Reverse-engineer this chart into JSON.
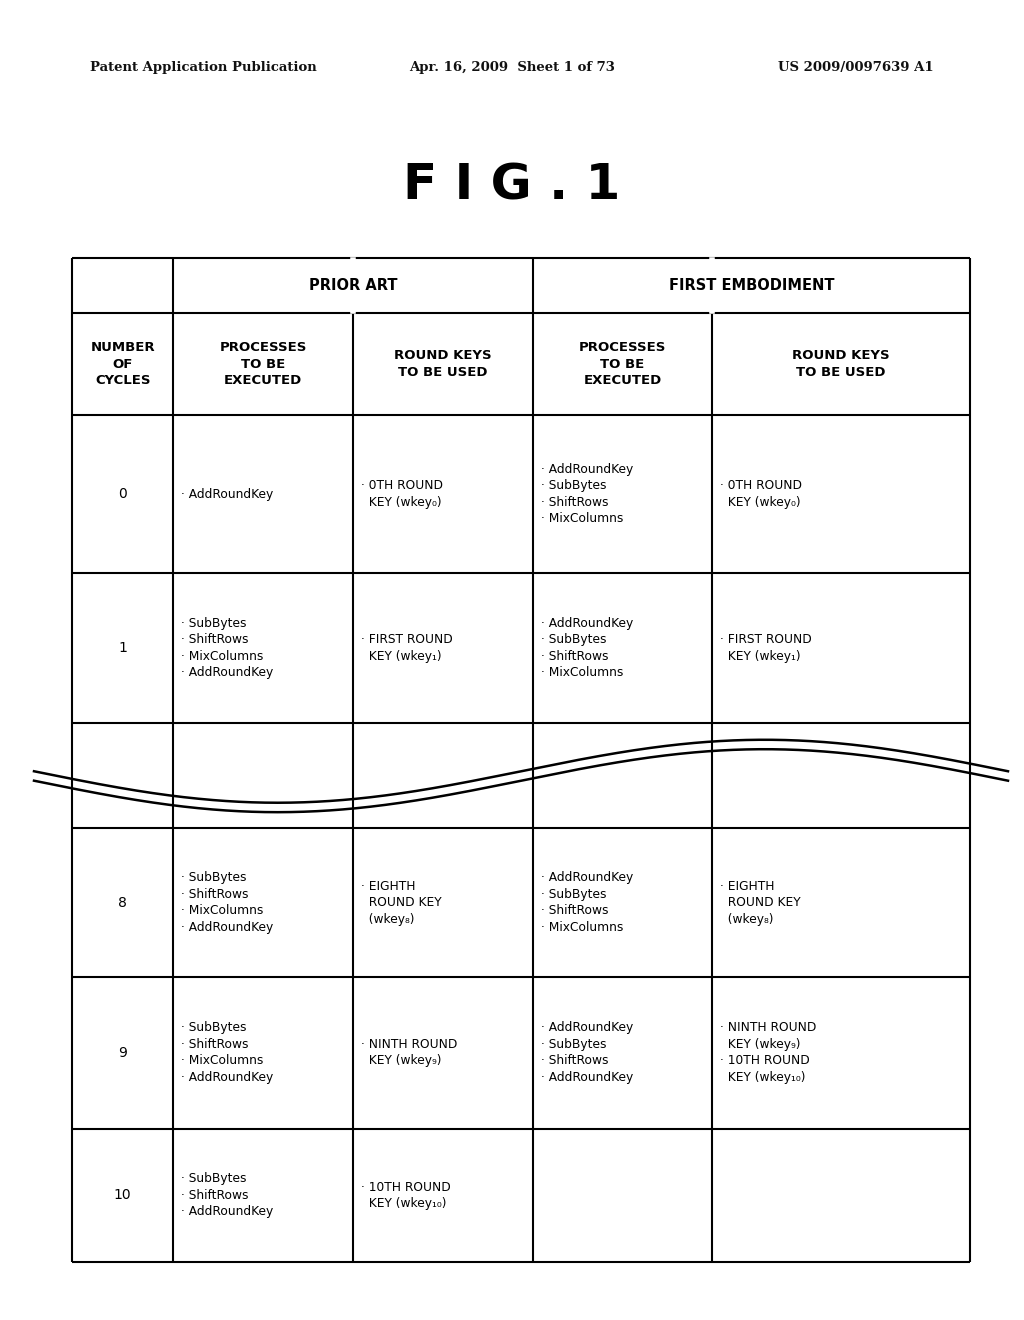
{
  "header_text_left": "Patent Application Publication",
  "header_text_mid": "Apr. 16, 2009  Sheet 1 of 73",
  "header_text_right": "US 2009/0097639 A1",
  "fig_title": "F I G . 1",
  "bg_color": "#ffffff",
  "cycles": [
    "0",
    "1",
    "",
    "8",
    "9",
    "10"
  ],
  "prior_art_processes": [
    "· AddRoundKey",
    "· SubBytes\n· ShiftRows\n· MixColumns\n· AddRoundKey",
    "",
    "· SubBytes\n· ShiftRows\n· MixColumns\n· AddRoundKey",
    "· SubBytes\n· ShiftRows\n· MixColumns\n· AddRoundKey",
    "· SubBytes\n· ShiftRows\n· AddRoundKey"
  ],
  "prior_art_keys": [
    "· 0TH ROUND\n  KEY (wkey₀)",
    "· FIRST ROUND\n  KEY (wkey₁)",
    "",
    "· EIGHTH\n  ROUND KEY\n  (wkey₈)",
    "· NINTH ROUND\n  KEY (wkey₉)",
    "· 10TH ROUND\n  KEY (wkey₁₀)"
  ],
  "first_emb_processes": [
    "· AddRoundKey\n· SubBytes\n· ShiftRows\n· MixColumns",
    "· AddRoundKey\n· SubBytes\n· ShiftRows\n· MixColumns",
    "",
    "· AddRoundKey\n· SubBytes\n· ShiftRows\n· MixColumns",
    "· AddRoundKey\n· SubBytes\n· ShiftRows\n· AddRoundKey",
    ""
  ],
  "first_emb_keys": [
    "· 0TH ROUND\n  KEY (wkey₀)",
    "· FIRST ROUND\n  KEY (wkey₁)",
    "",
    "· EIGHTH\n  ROUND KEY\n  (wkey₈)",
    "· NINTH ROUND\n  KEY (wkey₉)\n· 10TH ROUND\n  KEY (wkey₁₀)",
    ""
  ]
}
